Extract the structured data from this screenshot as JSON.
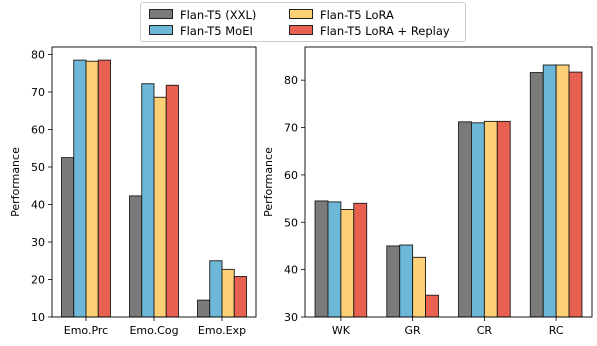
{
  "chart_data": [
    {
      "type": "bar",
      "categories": [
        "Emo.Prc",
        "Emo.Cog",
        "Emo.Exp"
      ],
      "series": [
        {
          "name": "Flan-T5 (XXL)",
          "color": "#7a7a7a",
          "values": [
            52.5,
            42.3,
            14.5
          ]
        },
        {
          "name": "Flan-T5 MoEI",
          "color": "#6cb8d6",
          "values": [
            78.5,
            72.2,
            25.0
          ]
        },
        {
          "name": "Flan-T5 LoRA",
          "color": "#fdd075",
          "values": [
            78.2,
            68.6,
            22.7
          ]
        },
        {
          "name": "Flan-T5 LoRA + Replay",
          "color": "#e8604f",
          "values": [
            78.5,
            71.8,
            20.8
          ]
        }
      ],
      "ylabel": "Performance",
      "ylim": [
        10,
        82
      ],
      "yticks": [
        10,
        20,
        30,
        40,
        50,
        60,
        70,
        80
      ],
      "grid": false
    },
    {
      "type": "bar",
      "categories": [
        "WK",
        "GR",
        "CR",
        "RC"
      ],
      "series": [
        {
          "name": "Flan-T5 (XXL)",
          "color": "#7a7a7a",
          "values": [
            54.5,
            45.0,
            71.2,
            81.6
          ]
        },
        {
          "name": "Flan-T5 MoEI",
          "color": "#6cb8d6",
          "values": [
            54.3,
            45.2,
            71.0,
            83.2
          ]
        },
        {
          "name": "Flan-T5 LoRA",
          "color": "#fdd075",
          "values": [
            52.7,
            42.6,
            71.3,
            83.2
          ]
        },
        {
          "name": "Flan-T5 LoRA + Replay",
          "color": "#e8604f",
          "values": [
            54.0,
            34.6,
            71.3,
            81.7
          ]
        }
      ],
      "ylabel": "Performance",
      "ylim": [
        30,
        87
      ],
      "yticks": [
        30,
        40,
        50,
        60,
        70,
        80
      ],
      "grid": false
    }
  ],
  "legend": {
    "placement": "top-center",
    "entries": [
      {
        "label": "Flan-T5 (XXL)",
        "color": "#7a7a7a"
      },
      {
        "label": "Flan-T5 MoEI",
        "color": "#6cb8d6"
      },
      {
        "label": "Flan-T5 LoRA",
        "color": "#fdd075"
      },
      {
        "label": "Flan-T5 LoRA + Replay",
        "color": "#e8604f"
      }
    ]
  }
}
